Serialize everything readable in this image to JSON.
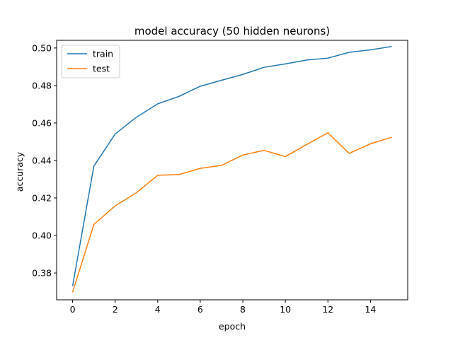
{
  "chart_data": {
    "type": "line",
    "title": "model accuracy (50 hidden neurons)",
    "xlabel": "epoch",
    "ylabel": "accuracy",
    "xlim": [
      -0.75,
      15.75
    ],
    "ylim": [
      0.3657,
      0.5041
    ],
    "xticks": [
      0,
      2,
      4,
      6,
      8,
      10,
      12,
      14
    ],
    "yticks": [
      0.38,
      0.4,
      0.42,
      0.44,
      0.46,
      0.48,
      0.5
    ],
    "xtick_labels": [
      "0",
      "2",
      "4",
      "6",
      "8",
      "10",
      "12",
      "14"
    ],
    "ytick_labels": [
      "0.38",
      "0.40",
      "0.42",
      "0.44",
      "0.46",
      "0.48",
      "0.50"
    ],
    "grid": false,
    "legend_position": "upper-left",
    "x": [
      0,
      1,
      2,
      3,
      4,
      5,
      6,
      7,
      8,
      9,
      10,
      11,
      12,
      13,
      14,
      15
    ],
    "series": [
      {
        "name": "train",
        "color": "#1f77b4",
        "values": [
          0.373,
          0.437,
          0.4541,
          0.4631,
          0.4702,
          0.4742,
          0.4796,
          0.4828,
          0.4859,
          0.4897,
          0.4915,
          0.4936,
          0.4946,
          0.4977,
          0.499,
          0.5008
        ]
      },
      {
        "name": "test",
        "color": "#ff7f0e",
        "values": [
          0.3697,
          0.4059,
          0.4158,
          0.4228,
          0.4321,
          0.4325,
          0.4358,
          0.4374,
          0.4429,
          0.4454,
          0.4421,
          0.4485,
          0.4548,
          0.4438,
          0.4489,
          0.4524
        ]
      }
    ]
  }
}
